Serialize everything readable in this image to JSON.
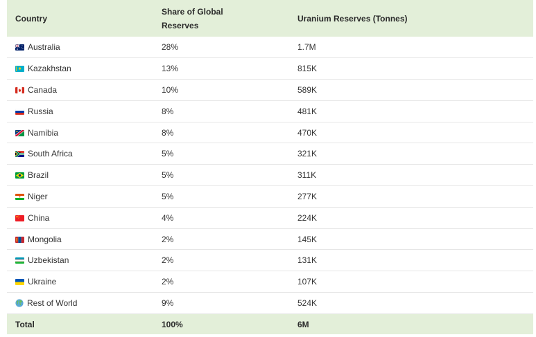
{
  "table": {
    "headers": {
      "country": "Country",
      "share_line1": "Share of Global",
      "share_line2": "Reserves",
      "reserves": "Uranium Reserves (Tonnes)"
    },
    "rows": [
      {
        "country": "Australia",
        "share": "28%",
        "reserves": "1.7M",
        "flag": "australia-flag-icon"
      },
      {
        "country": "Kazakhstan",
        "share": "13%",
        "reserves": "815K",
        "flag": "kazakhstan-flag-icon"
      },
      {
        "country": "Canada",
        "share": "10%",
        "reserves": "589K",
        "flag": "canada-flag-icon"
      },
      {
        "country": "Russia",
        "share": "8%",
        "reserves": "481K",
        "flag": "russia-flag-icon"
      },
      {
        "country": "Namibia",
        "share": "8%",
        "reserves": "470K",
        "flag": "namibia-flag-icon"
      },
      {
        "country": "South Africa",
        "share": "5%",
        "reserves": "321K",
        "flag": "south-africa-flag-icon"
      },
      {
        "country": "Brazil",
        "share": "5%",
        "reserves": "311K",
        "flag": "brazil-flag-icon"
      },
      {
        "country": "Niger",
        "share": "5%",
        "reserves": "277K",
        "flag": "niger-flag-icon"
      },
      {
        "country": "China",
        "share": "4%",
        "reserves": "224K",
        "flag": "china-flag-icon"
      },
      {
        "country": "Mongolia",
        "share": "2%",
        "reserves": "145K",
        "flag": "mongolia-flag-icon"
      },
      {
        "country": "Uzbekistan",
        "share": "2%",
        "reserves": "131K",
        "flag": "uzbekistan-flag-icon"
      },
      {
        "country": "Ukraine",
        "share": "2%",
        "reserves": "107K",
        "flag": "ukraine-flag-icon"
      },
      {
        "country": "Rest of World",
        "share": "9%",
        "reserves": "524K",
        "flag": "globe-icon"
      }
    ],
    "total": {
      "label": "Total",
      "share": "100%",
      "reserves": "6M"
    }
  },
  "colors": {
    "header_bg": "#e3efd9",
    "row_border": "#e6e6e6"
  }
}
